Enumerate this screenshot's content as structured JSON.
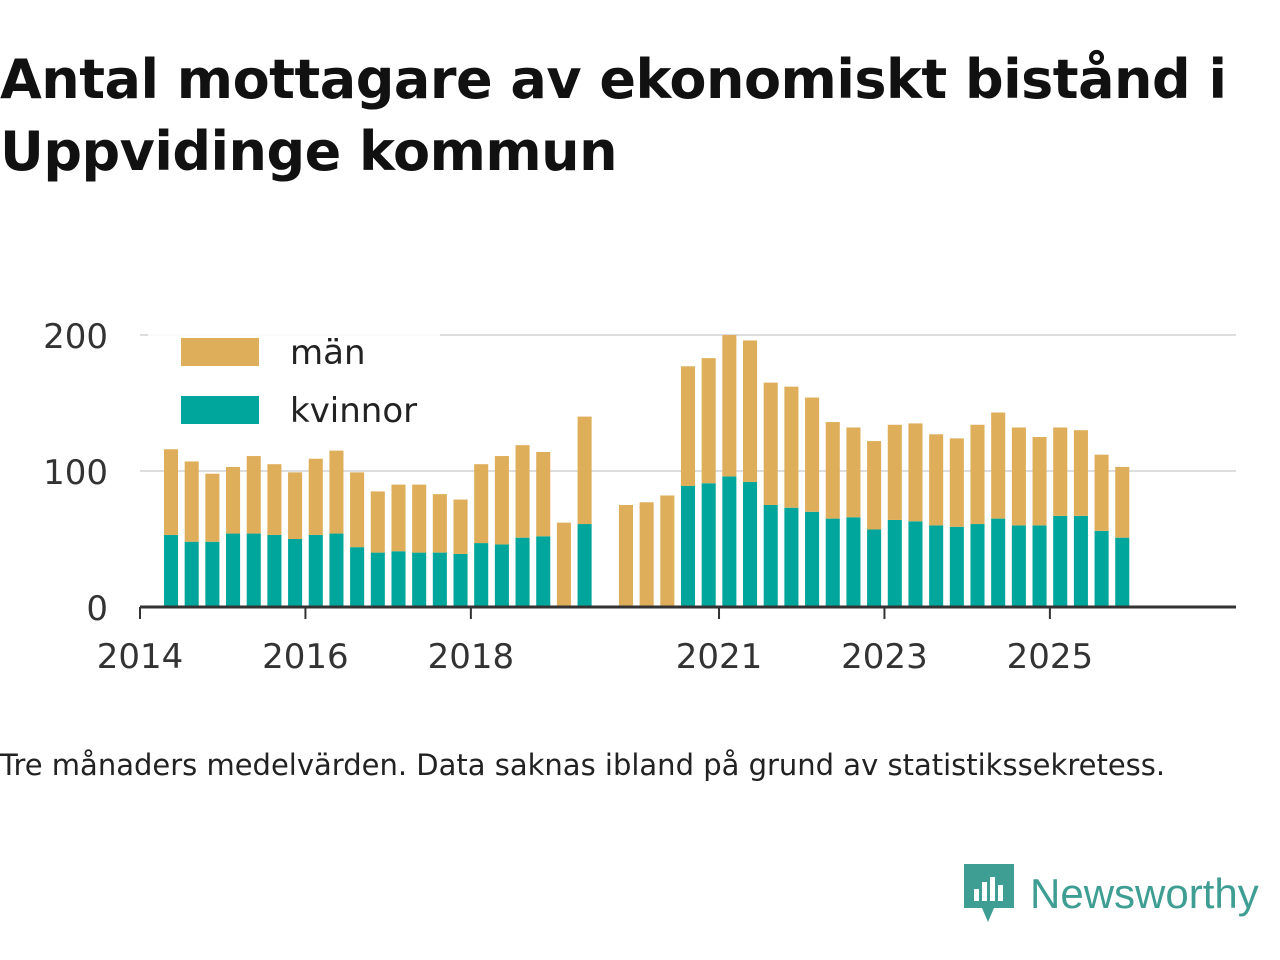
{
  "title": "Antal mottagare av ekonomiskt bistånd i Uppvidinge kommun",
  "caption": "Tre månaders medelvärden. Data saknas ibland på grund av statistikssekretess.",
  "brand": {
    "name": "Newsworthy",
    "icon": "newsworthy-logo-icon",
    "color": "#3f9e93"
  },
  "chart_data": {
    "type": "bar",
    "stacked": true,
    "title": "Antal mottagare av ekonomiskt bistånd i Uppvidinge kommun",
    "xlabel": "",
    "ylabel": "",
    "ylim": [
      0,
      200
    ],
    "yticks": [
      0,
      100,
      200
    ],
    "xlim": [
      2014.0,
      2027.25
    ],
    "xticks": [
      2014,
      2016,
      2018,
      2021,
      2023,
      2025
    ],
    "xtick_labels": [
      "2014",
      "2016",
      "2018",
      "2021",
      "2023",
      "2025"
    ],
    "grid": true,
    "legend_position": "top-left",
    "x": [
      2014.375,
      2014.625,
      2014.875,
      2015.125,
      2015.375,
      2015.625,
      2015.875,
      2016.125,
      2016.375,
      2016.625,
      2016.875,
      2017.125,
      2017.375,
      2017.625,
      2017.875,
      2018.125,
      2018.375,
      2018.625,
      2018.875,
      2019.125,
      2019.375,
      2019.875,
      2020.125,
      2020.375,
      2020.625,
      2020.875,
      2021.125,
      2021.375,
      2021.625,
      2021.875,
      2022.125,
      2022.375,
      2022.625,
      2022.875,
      2023.125,
      2023.375,
      2023.625,
      2023.875,
      2024.125,
      2024.375,
      2024.625,
      2024.875,
      2025.125,
      2025.375,
      2025.625,
      2025.875
    ],
    "series": [
      {
        "name": "kvinnor",
        "color": "#00a69b",
        "values": [
          53,
          48,
          48,
          54,
          54,
          53,
          50,
          53,
          54,
          44,
          40,
          41,
          40,
          40,
          39,
          47,
          46,
          51,
          52,
          null,
          61,
          null,
          null,
          null,
          89,
          91,
          96,
          92,
          75,
          73,
          70,
          65,
          66,
          57,
          64,
          63,
          60,
          59,
          61,
          65,
          60,
          60,
          67,
          67,
          56,
          51
        ]
      },
      {
        "name": "män",
        "color": "#dfae5a",
        "values": [
          63,
          59,
          50,
          49,
          57,
          52,
          49,
          56,
          61,
          55,
          45,
          49,
          50,
          43,
          40,
          58,
          65,
          68,
          62,
          62,
          79,
          75,
          77,
          82,
          88,
          92,
          104,
          104,
          90,
          89,
          84,
          71,
          66,
          65,
          70,
          72,
          67,
          65,
          73,
          78,
          72,
          65,
          65,
          63,
          56,
          52
        ]
      }
    ]
  }
}
